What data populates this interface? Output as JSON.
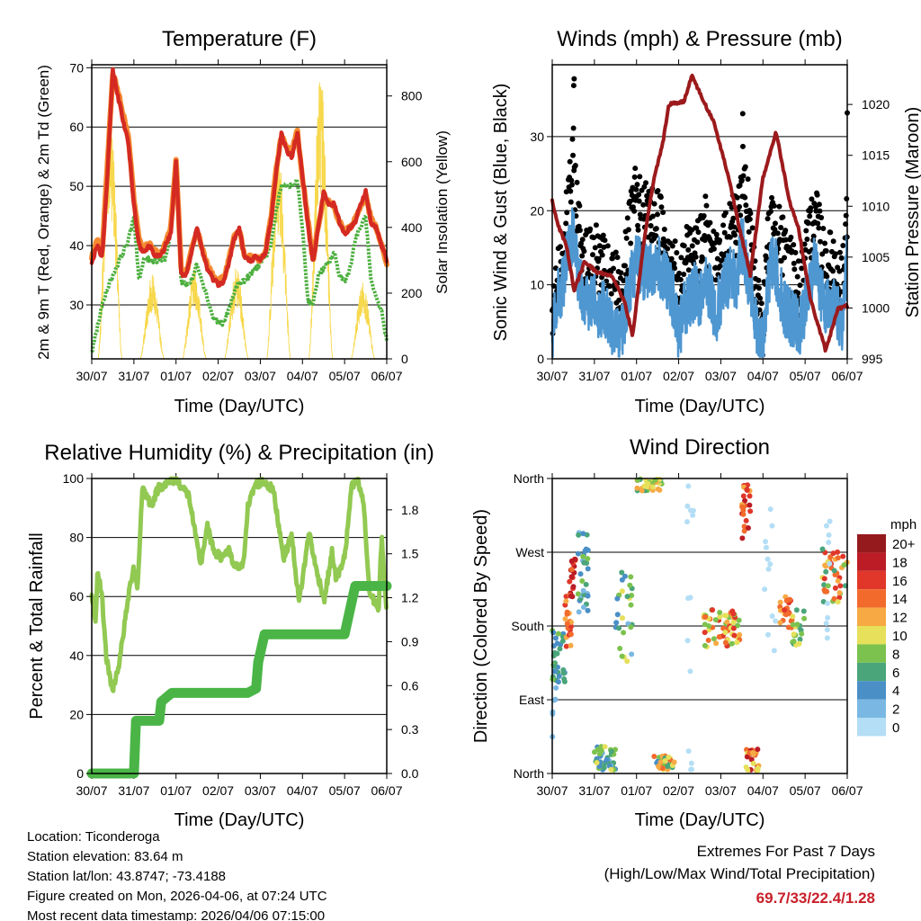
{
  "colors": {
    "temp2m": "#d42a22",
    "temp9m": "#f58a30",
    "dewpoint": "#4caf3e",
    "solar": "#f7d84c",
    "wind": "#4f97d1",
    "gust": "#000000",
    "pressure": "#9c1a1c",
    "rh": "#92c952",
    "precip": "#4ab546",
    "extremes": "#c8202a"
  },
  "chart_data": [
    {
      "type": "line",
      "title": "Temperature (F)",
      "xlabel": "Time (Day/UTC)",
      "ylabel": "2m & 9m T (Red, Orange) & 2m Td (Green)",
      "ylabel_right": "Solar Insolation (Yellow)",
      "xticks": [
        "30/07",
        "31/07",
        "01/07",
        "02/07",
        "03/07",
        "04/07",
        "05/07",
        "06/07"
      ],
      "yticks": [
        30,
        40,
        50,
        60,
        70
      ],
      "yticks_right": [
        0,
        200,
        400,
        600,
        800
      ],
      "ylim": [
        20.9,
        70.5
      ],
      "ylim_right": [
        0,
        895
      ],
      "grid": true,
      "x_step_days": 0.125,
      "series": [
        {
          "name": "2m T",
          "values": [
            37,
            40,
            38,
            52,
            69.7,
            65,
            61,
            57,
            47,
            40,
            39,
            40,
            38.5,
            38,
            40,
            42,
            54,
            35,
            35,
            39,
            43,
            39,
            36,
            34.5,
            33.5,
            34,
            37,
            41,
            43,
            38,
            37.5,
            38,
            37.5,
            39,
            44,
            52,
            59,
            56,
            55,
            59,
            52,
            44,
            37,
            43,
            49,
            47,
            47,
            44,
            42,
            43,
            44,
            47,
            49,
            44,
            43,
            40,
            37.5
          ]
        },
        {
          "name": "9m T",
          "values": [
            38,
            41,
            39,
            54,
            69,
            66,
            62,
            58,
            48,
            41,
            39.5,
            40.5,
            39,
            38.5,
            40.5,
            43,
            54.5,
            35.5,
            35.5,
            39.5,
            42.5,
            39.5,
            36.5,
            35,
            34,
            34.5,
            37.5,
            41.5,
            42.5,
            38.5,
            38,
            38,
            37.5,
            39,
            44.5,
            53,
            58.5,
            56.5,
            56,
            59.5,
            51.5,
            44.5,
            37.5,
            43.5,
            48,
            47.5,
            46.5,
            44,
            42.5,
            43,
            44.5,
            46.5,
            48.5,
            44.5,
            43,
            40,
            37
          ]
        },
        {
          "name": "2m Td",
          "values": [
            22,
            26,
            30,
            33,
            35,
            37,
            39,
            41,
            45,
            34,
            38,
            37.5,
            37.5,
            37.5,
            38,
            42,
            52,
            34,
            33.5,
            34,
            37,
            34,
            31,
            28,
            27,
            27,
            29,
            32,
            34,
            34,
            35,
            36,
            37,
            38,
            40,
            46,
            50,
            50,
            50,
            51,
            43,
            31,
            30,
            35,
            36,
            37,
            39,
            35,
            34,
            36,
            41,
            43,
            45,
            34,
            31,
            29,
            24
          ]
        },
        {
          "name": "Solar Insolation",
          "daily_peak": [
            792,
            257,
            271,
            280,
            674,
            893,
            235
          ]
        }
      ]
    },
    {
      "type": "line",
      "title": "Winds (mph) & Pressure (mb)",
      "xlabel": "Time (Day/UTC)",
      "ylabel": "Sonic Wind & Gust (Blue, Black)",
      "ylabel_right": "Station Pressure (Maroon)",
      "xticks": [
        "30/07",
        "31/07",
        "01/07",
        "02/07",
        "03/07",
        "04/07",
        "05/07",
        "06/07"
      ],
      "yticks": [
        0,
        10,
        20,
        30
      ],
      "yticks_right": [
        995,
        1000,
        1005,
        1010,
        1015,
        1020
      ],
      "ylim": [
        0,
        39.7
      ],
      "ylim_right": [
        995,
        1023.9
      ],
      "grid": true,
      "x_step_days": 0.125,
      "series": [
        {
          "name": "Sonic Wind",
          "values": [
            3,
            8,
            10,
            14,
            17,
            10,
            9,
            7,
            8,
            6,
            7,
            4,
            5,
            3,
            7,
            11,
            13,
            12,
            12,
            12,
            13,
            11,
            10,
            8,
            3,
            7,
            8,
            9,
            8,
            10,
            9,
            6,
            8,
            10,
            12,
            10,
            16,
            12,
            8,
            4,
            1,
            10,
            14,
            10,
            7,
            6,
            5,
            4,
            7,
            10,
            14,
            9,
            7,
            8,
            6,
            5,
            14
          ]
        },
        {
          "name": "Gust",
          "values": [
            6,
            12,
            14,
            20,
            27,
            18,
            14,
            13,
            14,
            13,
            12,
            10,
            11,
            9,
            13,
            19,
            22,
            19,
            20,
            19,
            19,
            18,
            15,
            14,
            8,
            13,
            15,
            17,
            14,
            18,
            15,
            12,
            14,
            16,
            19,
            18,
            25,
            21,
            14,
            8,
            4,
            16,
            20,
            17,
            14,
            13,
            12,
            9,
            13,
            17,
            22,
            16,
            13,
            14,
            11,
            10,
            20
          ],
          "outliers": [
            [
              0.52,
              37.8
            ],
            [
              0.51,
              36.9
            ],
            [
              4.52,
              33.1
            ],
            [
              7.0,
              33.2
            ]
          ]
        },
        {
          "name": "Station Pressure",
          "x": [
            0,
            0.13,
            0.34,
            0.52,
            0.77,
            1.06,
            1.41,
            1.7,
            1.91,
            2.2,
            2.41,
            2.63,
            2.77,
            3.13,
            3.31,
            3.56,
            3.84,
            4.2,
            4.41,
            4.7,
            4.99,
            5.31,
            5.63,
            5.84,
            6.13,
            6.49,
            6.77,
            7.0
          ],
          "values": [
            1010.5,
            1008.2,
            1006.1,
            1001.7,
            1004.6,
            1003.5,
            1003.2,
            1000.8,
            997.3,
            1007.3,
            1012.6,
            1016.4,
            1020,
            1020.3,
            1022.9,
            1020.6,
            1018.2,
            1012.6,
            1008.5,
            1003.2,
            1012.6,
            1017.3,
            1010.5,
            1007.9,
            1000.8,
            995.8,
            999.9,
            1000.2
          ]
        }
      ]
    },
    {
      "type": "line",
      "title": "Relative Humidity (%) & Precipitation (in)",
      "xlabel": "Time (Day/UTC)",
      "ylabel": "Percent & Total Rainfall",
      "xticks": [
        "30/07",
        "31/07",
        "01/07",
        "02/07",
        "03/07",
        "04/07",
        "05/07",
        "06/07"
      ],
      "yticks": [
        0,
        20,
        40,
        60,
        80,
        100
      ],
      "yticks_right": [
        "0.0",
        "0.3",
        "0.6",
        "0.9",
        "1.2",
        "1.5",
        "1.8"
      ],
      "ylim": [
        0,
        100
      ],
      "ylim_right": [
        0,
        2.014
      ],
      "grid": true,
      "series": [
        {
          "name": "Relative Humidity",
          "x": [
            0,
            0.09,
            0.14,
            0.24,
            0.34,
            0.49,
            0.66,
            0.88,
            0.99,
            1.09,
            1.2,
            1.41,
            1.59,
            1.88,
            1.99,
            2.31,
            2.49,
            2.59,
            2.74,
            2.88,
            3.06,
            3.24,
            3.38,
            3.59,
            3.7,
            3.88,
            4.09,
            4.31,
            4.45,
            4.56,
            4.74,
            4.92,
            5.02,
            5.16,
            5.31,
            5.52,
            5.7,
            5.81,
            6.02,
            6.16,
            6.31,
            6.45,
            6.59,
            6.81,
            6.88,
            6.99
          ],
          "values": [
            61,
            50,
            68,
            61,
            40,
            28,
            38,
            61,
            70,
            63,
            97,
            91,
            97,
            99,
            100,
            94,
            78,
            71,
            84,
            76,
            73,
            76,
            70,
            70,
            90,
            98,
            99,
            96,
            83,
            73,
            81,
            58,
            68,
            82,
            70,
            59,
            75,
            65,
            75,
            97,
            99,
            92,
            61,
            56,
            81,
            55
          ]
        },
        {
          "name": "Total Precipitation",
          "x": [
            0,
            1.0,
            1.05,
            1.6,
            1.65,
            1.9,
            3.7,
            3.9,
            3.95,
            4.1,
            6.0,
            6.25,
            7.0
          ],
          "values": [
            0,
            0,
            0.36,
            0.36,
            0.49,
            0.55,
            0.55,
            0.58,
            0.76,
            0.95,
            0.95,
            1.28,
            1.28
          ]
        }
      ]
    },
    {
      "type": "scatter",
      "title": "Wind Direction",
      "xlabel": "Time (Day/UTC)",
      "ylabel": "Direction (Colored By Speed)",
      "xticks": [
        "30/07",
        "31/07",
        "01/07",
        "02/07",
        "03/07",
        "04/07",
        "05/07",
        "06/07"
      ],
      "yticks": [
        {
          "deg": 0,
          "label": "North"
        },
        {
          "deg": 90,
          "label": "East"
        },
        {
          "deg": 180,
          "label": "South"
        },
        {
          "deg": 270,
          "label": "West"
        },
        {
          "deg": 360,
          "label": "North"
        }
      ],
      "ylim": [
        0,
        360
      ],
      "grid": true,
      "legend": {
        "title": "mph",
        "labels": [
          "20+",
          "18",
          "16",
          "14",
          "12",
          "10",
          "8",
          "6",
          "4",
          "2",
          "0"
        ],
        "colors": [
          "#951a1e",
          "#bb1c25",
          "#e0372a",
          "#f26b2c",
          "#f7a944",
          "#e6e05a",
          "#7cc24e",
          "#4aa57a",
          "#4a8fc6",
          "#7ab8e3",
          "#b3def5"
        ],
        "placement": "right"
      },
      "clusters": [
        {
          "day": [
            0.0,
            0.3
          ],
          "dir": [
            110,
            175
          ],
          "mph": [
            4,
            9
          ],
          "n": 30
        },
        {
          "day": [
            0.0,
            0.1
          ],
          "dir": [
            40,
            110
          ],
          "mph": [
            2,
            4
          ],
          "n": 6
        },
        {
          "day": [
            0.3,
            0.45
          ],
          "dir": [
            155,
            225
          ],
          "mph": [
            12,
            18
          ],
          "n": 18
        },
        {
          "day": [
            0.4,
            0.55
          ],
          "dir": [
            214,
            263
          ],
          "mph": [
            15,
            20
          ],
          "n": 20
        },
        {
          "day": [
            0.6,
            0.85
          ],
          "dir": [
            197,
            296
          ],
          "mph": [
            3,
            9
          ],
          "n": 30
        },
        {
          "day": [
            1.0,
            1.5
          ],
          "dir": [
            3,
            33
          ],
          "mph": [
            3,
            11
          ],
          "n": 45
        },
        {
          "day": [
            1.5,
            1.9
          ],
          "dir": [
            130,
            250
          ],
          "mph": [
            3,
            11
          ],
          "n": 28
        },
        {
          "day": [
            2.0,
            2.6
          ],
          "dir": [
            345,
            360
          ],
          "mph": [
            7,
            14
          ],
          "n": 35
        },
        {
          "day": [
            2.4,
            2.9
          ],
          "dir": [
            4,
            22
          ],
          "mph": [
            5,
            16
          ],
          "n": 30
        },
        {
          "day": [
            3.2,
            3.35
          ],
          "dir": [
            0,
            360
          ],
          "mph": [
            0,
            2
          ],
          "n": 14
        },
        {
          "day": [
            3.6,
            4.45
          ],
          "dir": [
            154,
            200
          ],
          "mph": [
            8,
            18
          ],
          "n": 60
        },
        {
          "day": [
            4.5,
            4.7
          ],
          "dir": [
            285,
            360
          ],
          "mph": [
            13,
            20
          ],
          "n": 22
        },
        {
          "day": [
            4.6,
            4.9
          ],
          "dir": [
            2,
            30
          ],
          "mph": [
            10,
            20
          ],
          "n": 25
        },
        {
          "day": [
            5.0,
            5.3
          ],
          "dir": [
            150,
            330
          ],
          "mph": [
            0,
            2
          ],
          "n": 12
        },
        {
          "day": [
            5.4,
            5.7
          ],
          "dir": [
            175,
            219
          ],
          "mph": [
            12,
            18
          ],
          "n": 22
        },
        {
          "day": [
            5.7,
            6.0
          ],
          "dir": [
            150,
            200
          ],
          "mph": [
            6,
            11
          ],
          "n": 20
        },
        {
          "day": [
            6.4,
            7.0
          ],
          "dir": [
            208,
            274
          ],
          "mph": [
            6,
            18
          ],
          "n": 40
        },
        {
          "day": [
            6.5,
            6.6
          ],
          "dir": [
            130,
            350
          ],
          "mph": [
            0,
            2
          ],
          "n": 10
        }
      ]
    }
  ],
  "info": {
    "location": "Location: Ticonderoga",
    "elevation": "Station elevation: 83.64 m",
    "latlon": "Station lat/lon: 43.8747; -73.4188",
    "created": "Figure created on Mon, 2026-04-06, at 07:24 UTC",
    "latest": "Most recent data timestamp: 2026/04/06 07:15:00"
  },
  "extremes": {
    "line1": "Extremes For Past 7 Days",
    "line2": "(High/Low/Max Wind/Total Precipitation)",
    "values": "69.7/33/22.4/1.28"
  }
}
